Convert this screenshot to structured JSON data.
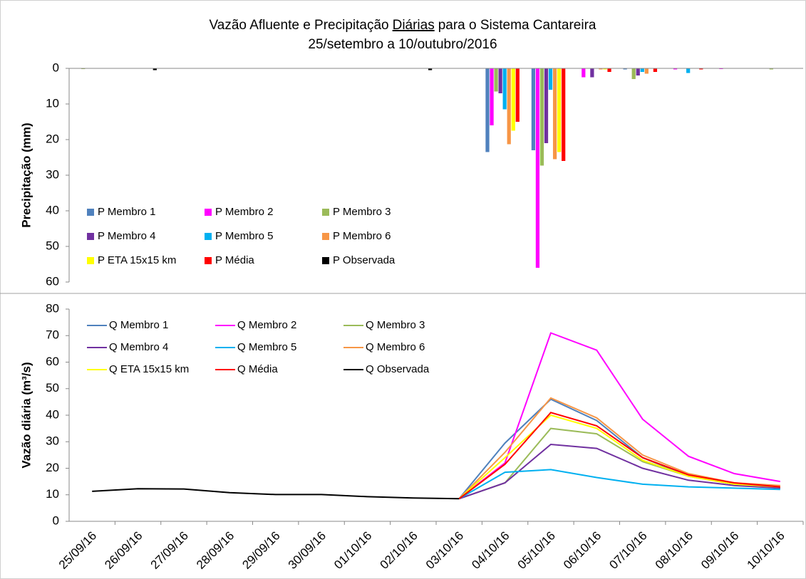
{
  "chart_data": [
    {
      "type": "bar",
      "title": [
        "Vazão Afluente e Precipitação",
        "Diárias",
        "para o Sistema Cantareira"
      ],
      "subtitle": "25/setembro a 10/outubro/2016",
      "y_label": "Precipitação (mm)",
      "ylim": [
        0,
        60
      ],
      "yticks": [
        0,
        10,
        20,
        30,
        40,
        50,
        60
      ],
      "y_inverted": true,
      "series": [
        {
          "name": "P Membro 1",
          "color": "#4f81bd",
          "values": [
            0,
            0,
            0,
            0,
            0,
            0,
            0,
            0,
            0,
            23.5,
            23,
            0,
            0.3,
            0,
            0,
            0
          ]
        },
        {
          "name": "P Membro 2",
          "color": "#ff00ff",
          "values": [
            0,
            0,
            0,
            0,
            0,
            0,
            0,
            0,
            0,
            16,
            56,
            2.5,
            0,
            0.3,
            0.2,
            0
          ]
        },
        {
          "name": "P Membro 3",
          "color": "#9bbb59",
          "values": [
            0.2,
            0,
            0,
            0,
            0,
            0,
            0,
            0,
            0,
            6.5,
            27.3,
            0,
            3,
            0,
            0,
            0.3
          ]
        },
        {
          "name": "P Membro 4",
          "color": "#7030a0",
          "values": [
            0,
            0,
            0,
            0,
            0,
            0,
            0,
            0,
            0,
            7,
            21,
            2.5,
            2,
            0,
            0,
            0
          ]
        },
        {
          "name": "P Membro 5",
          "color": "#00b0f0",
          "values": [
            0,
            0,
            0,
            0,
            0,
            0,
            0,
            0,
            0,
            11.5,
            6,
            0,
            1,
            1.3,
            0,
            0
          ]
        },
        {
          "name": "P Membro 6",
          "color": "#f79646",
          "values": [
            0,
            0,
            0,
            0,
            0,
            0,
            0,
            0,
            0,
            21.3,
            25.5,
            0.3,
            1.5,
            0,
            0,
            0
          ]
        },
        {
          "name": "P ETA 15x15 km",
          "color": "#ffff00",
          "values": [
            0,
            0,
            0,
            0,
            0,
            0,
            0,
            0,
            0,
            17.5,
            23.5,
            0.3,
            0,
            0,
            0,
            0
          ]
        },
        {
          "name": "P Média",
          "color": "#ff0000",
          "values": [
            0,
            0,
            0,
            0,
            0,
            0,
            0,
            0,
            0,
            15,
            26,
            1,
            1,
            0.3,
            0,
            0
          ]
        },
        {
          "name": "P Observada",
          "color": "#000000",
          "values": [
            0,
            0.5,
            0,
            0,
            0,
            0,
            0,
            0.5,
            0,
            0,
            0,
            0,
            0,
            0,
            0,
            0
          ]
        }
      ]
    },
    {
      "type": "line",
      "y_label": "Vazão diária (m³/s)",
      "categories": [
        "25/09/16",
        "26/09/16",
        "27/09/16",
        "28/09/16",
        "29/09/16",
        "30/09/16",
        "01/10/16",
        "02/10/16",
        "03/10/16",
        "04/10/16",
        "05/10/16",
        "06/10/16",
        "07/10/16",
        "08/10/16",
        "09/10/16",
        "10/10/16"
      ],
      "ylim": [
        0,
        80
      ],
      "yticks": [
        0,
        10,
        20,
        30,
        40,
        50,
        60,
        70,
        80
      ],
      "series": [
        {
          "name": "Q Membro 1",
          "color": "#4f81bd",
          "values": [
            null,
            null,
            null,
            null,
            null,
            null,
            null,
            null,
            8.5,
            29.5,
            46,
            38,
            24,
            17,
            14,
            12.5
          ]
        },
        {
          "name": "Q Membro 2",
          "color": "#ff00ff",
          "values": [
            null,
            null,
            null,
            null,
            null,
            null,
            null,
            null,
            8.5,
            22,
            71,
            64.5,
            38.5,
            24.5,
            18,
            15
          ]
        },
        {
          "name": "Q Membro 3",
          "color": "#9bbb59",
          "values": [
            null,
            null,
            null,
            null,
            null,
            null,
            null,
            null,
            8.5,
            14.5,
            35,
            33,
            22.5,
            17,
            14,
            12.5
          ]
        },
        {
          "name": "Q Membro 4",
          "color": "#7030a0",
          "values": [
            null,
            null,
            null,
            null,
            null,
            null,
            null,
            null,
            8.5,
            14.5,
            29,
            27.5,
            20,
            15.5,
            13.5,
            12.5
          ]
        },
        {
          "name": "Q Membro 5",
          "color": "#00b0f0",
          "values": [
            null,
            null,
            null,
            null,
            null,
            null,
            null,
            null,
            8.5,
            18.5,
            19.5,
            16.5,
            14,
            13,
            12.5,
            12
          ]
        },
        {
          "name": "Q Membro 6",
          "color": "#f79646",
          "values": [
            null,
            null,
            null,
            null,
            null,
            null,
            null,
            null,
            8.5,
            26,
            46.5,
            39,
            25,
            18,
            14.5,
            13.5
          ]
        },
        {
          "name": "Q ETA 15x15 km",
          "color": "#ffff00",
          "values": [
            null,
            null,
            null,
            null,
            null,
            null,
            null,
            null,
            8.5,
            24,
            40,
            35,
            23,
            17,
            14,
            13
          ]
        },
        {
          "name": "Q Média",
          "color": "#ff0000",
          "values": [
            null,
            null,
            null,
            null,
            null,
            null,
            null,
            null,
            8.5,
            21.5,
            41,
            36,
            24,
            17.5,
            14.5,
            13
          ]
        },
        {
          "name": "Q Observada",
          "color": "#000000",
          "values": [
            11.3,
            12.3,
            12.2,
            10.8,
            10.1,
            10.1,
            9.3,
            8.8,
            8.5,
            null,
            null,
            null,
            null,
            null,
            null,
            null
          ]
        }
      ]
    }
  ]
}
